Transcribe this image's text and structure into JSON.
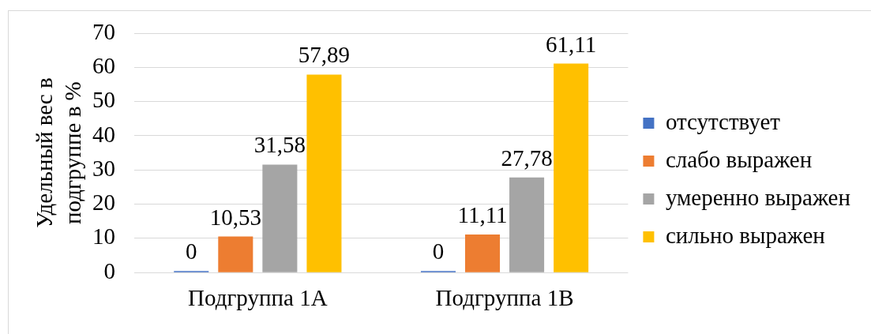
{
  "chart_data": {
    "type": "bar",
    "ylabel": "Удельный вес в подгруппе в %",
    "categories": [
      "Подгруппа 1А",
      "Подгруппа 1В"
    ],
    "series": [
      {
        "name": "отсутствует",
        "color": "#4472c4",
        "values": [
          0,
          0
        ],
        "value_labels": [
          "0",
          "0"
        ]
      },
      {
        "name": "слабо выражен",
        "color": "#ed7d31",
        "values": [
          10.53,
          11.11
        ],
        "value_labels": [
          "10,53",
          "11,11"
        ]
      },
      {
        "name": "умеренно выражен",
        "color": "#a5a5a5",
        "values": [
          31.58,
          27.78
        ],
        "value_labels": [
          "31,58",
          "27,78"
        ]
      },
      {
        "name": "сильно выражен",
        "color": "#ffc000",
        "values": [
          57.89,
          61.11
        ],
        "value_labels": [
          "57,89",
          "61,11"
        ]
      }
    ],
    "ylim": [
      0,
      70
    ],
    "yticks": [
      0,
      10,
      20,
      30,
      40,
      50,
      60,
      70
    ],
    "grid": "y",
    "legend": "right"
  }
}
